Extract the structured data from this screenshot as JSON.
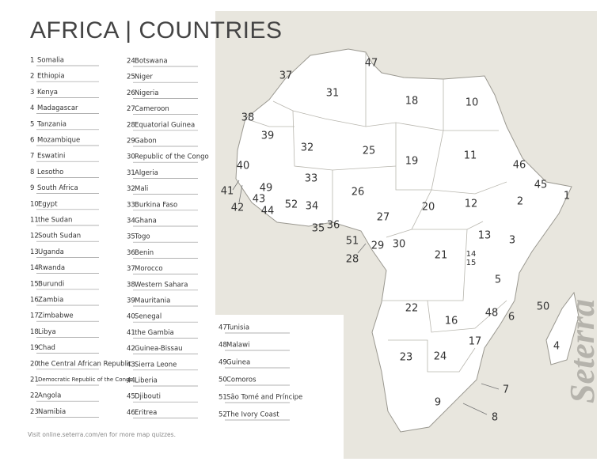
{
  "title": "AFRICA | COUNTRIES",
  "countries": [
    {
      "number": 1,
      "name": "Somalia"
    },
    {
      "number": 2,
      "name": "Ethiopia"
    },
    {
      "number": 3,
      "name": "Kenya"
    },
    {
      "number": 4,
      "name": "Madagascar"
    },
    {
      "number": 5,
      "name": "Tanzania"
    },
    {
      "number": 6,
      "name": "Mozambique"
    },
    {
      "number": 7,
      "name": "Eswatini"
    },
    {
      "number": 8,
      "name": "Lesotho"
    },
    {
      "number": 9,
      "name": "South Africa"
    },
    {
      "number": 10,
      "name": "Egypt"
    },
    {
      "number": 11,
      "name": "the Sudan"
    },
    {
      "number": 12,
      "name": "South Sudan"
    },
    {
      "number": 13,
      "name": "Uganda"
    },
    {
      "number": 14,
      "name": "Rwanda"
    },
    {
      "number": 15,
      "name": "Burundi"
    },
    {
      "number": 16,
      "name": "Zambia"
    },
    {
      "number": 17,
      "name": "Zimbabwe"
    },
    {
      "number": 18,
      "name": "Libya"
    },
    {
      "number": 19,
      "name": "Chad"
    },
    {
      "number": 20,
      "name": "the Central African Republic"
    },
    {
      "number": 21,
      "name": "Democratic Republic of the Congo"
    },
    {
      "number": 22,
      "name": "Angola"
    },
    {
      "number": 23,
      "name": "Namibia"
    },
    {
      "number": 24,
      "name": "Botswana"
    },
    {
      "number": 25,
      "name": "Niger"
    },
    {
      "number": 26,
      "name": "Nigeria"
    },
    {
      "number": 27,
      "name": "Cameroon"
    },
    {
      "number": 28,
      "name": "Equatorial Guinea"
    },
    {
      "number": 29,
      "name": "Gabon"
    },
    {
      "number": 30,
      "name": "Republic of the Congo"
    },
    {
      "number": 31,
      "name": "Algeria"
    },
    {
      "number": 32,
      "name": "Mali"
    },
    {
      "number": 33,
      "name": "Burkina Faso"
    },
    {
      "number": 34,
      "name": "Ghana"
    },
    {
      "number": 35,
      "name": "Togo"
    },
    {
      "number": 36,
      "name": "Benin"
    },
    {
      "number": 37,
      "name": "Morocco"
    },
    {
      "number": 38,
      "name": "Western Sahara"
    },
    {
      "number": 39,
      "name": "Mauritania"
    },
    {
      "number": 40,
      "name": "Senegal"
    },
    {
      "number": 41,
      "name": "the Gambia"
    },
    {
      "number": 42,
      "name": "Guinea-Bissau"
    },
    {
      "number": 43,
      "name": "Sierra Leone"
    },
    {
      "number": 44,
      "name": "Liberia"
    },
    {
      "number": 45,
      "name": "Djibouti"
    },
    {
      "number": 46,
      "name": "Eritrea"
    },
    {
      "number": 47,
      "name": "Tunisia"
    },
    {
      "number": 48,
      "name": "Malawi"
    },
    {
      "number": 49,
      "name": "Guinea"
    },
    {
      "number": 50,
      "name": "Comoros"
    },
    {
      "number": 51,
      "name": "São Tomé and Príncipe"
    },
    {
      "number": 52,
      "name": "The Ivory Coast"
    }
  ],
  "footer": "Visit online.seterra.com/en for more map quizzes.",
  "watermark": "Seterra"
}
